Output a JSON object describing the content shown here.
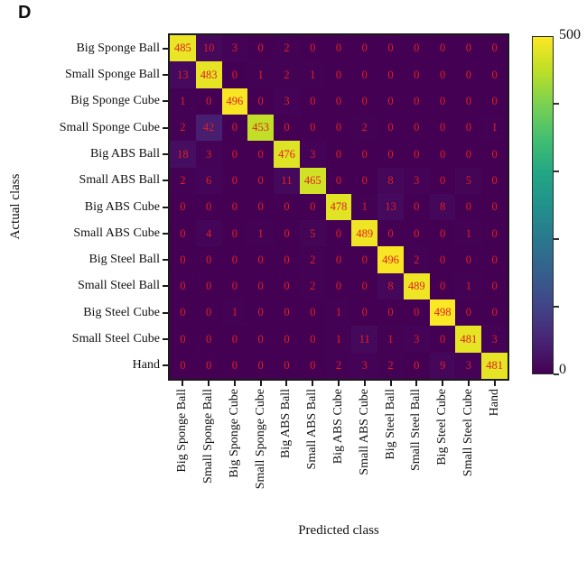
{
  "panel_label": "D",
  "chart_data": {
    "type": "heatmap",
    "subtype": "confusion-matrix",
    "xlabel": "Predicted class",
    "ylabel": "Actual class",
    "classes": [
      "Big Sponge Ball",
      "Small Sponge Ball",
      "Big Sponge Cube",
      "Small Sponge Cube",
      "Big ABS Ball",
      "Small ABS Ball",
      "Big ABS Cube",
      "Small ABS Cube",
      "Big Steel Ball",
      "Small Steel Ball",
      "Big Steel Cube",
      "Small Steel Cube",
      "Hand"
    ],
    "matrix": [
      [
        485,
        10,
        3,
        0,
        2,
        0,
        0,
        0,
        0,
        0,
        0,
        0,
        0
      ],
      [
        13,
        483,
        0,
        1,
        2,
        1,
        0,
        0,
        0,
        0,
        0,
        0,
        0
      ],
      [
        1,
        0,
        496,
        0,
        3,
        0,
        0,
        0,
        0,
        0,
        0,
        0,
        0
      ],
      [
        2,
        42,
        0,
        453,
        0,
        0,
        0,
        2,
        0,
        0,
        0,
        0,
        1
      ],
      [
        18,
        3,
        0,
        0,
        476,
        3,
        0,
        0,
        0,
        0,
        0,
        0,
        0
      ],
      [
        2,
        6,
        0,
        0,
        11,
        465,
        0,
        0,
        8,
        3,
        0,
        5,
        0
      ],
      [
        0,
        0,
        0,
        0,
        0,
        0,
        478,
        1,
        13,
        0,
        8,
        0,
        0
      ],
      [
        0,
        4,
        0,
        1,
        0,
        5,
        0,
        489,
        0,
        0,
        0,
        1,
        0
      ],
      [
        0,
        0,
        0,
        0,
        0,
        2,
        0,
        0,
        496,
        2,
        0,
        0,
        0
      ],
      [
        0,
        0,
        0,
        0,
        0,
        2,
        0,
        0,
        8,
        489,
        0,
        1,
        0
      ],
      [
        0,
        0,
        1,
        0,
        0,
        0,
        1,
        0,
        0,
        0,
        498,
        0,
        0
      ],
      [
        0,
        0,
        0,
        0,
        0,
        0,
        1,
        11,
        1,
        3,
        0,
        481,
        3
      ],
      [
        0,
        0,
        0,
        0,
        0,
        0,
        2,
        3,
        2,
        0,
        9,
        3,
        481
      ]
    ],
    "vmin": 0,
    "vmax": 500,
    "colorbar": {
      "position": "right",
      "tick_values": [
        0,
        100,
        200,
        300,
        400
      ],
      "max_label": "500",
      "min_label": "0"
    },
    "colormap": {
      "name": "viridis",
      "stops": [
        "#440154",
        "#482475",
        "#414487",
        "#355f8d",
        "#2a788e",
        "#21918c",
        "#22a884",
        "#44bf70",
        "#7ad151",
        "#bddf26",
        "#fde725"
      ]
    },
    "value_text_color": "#e02020",
    "axis_color": "#1a1a1a",
    "grid": false,
    "legend_position": "none"
  }
}
